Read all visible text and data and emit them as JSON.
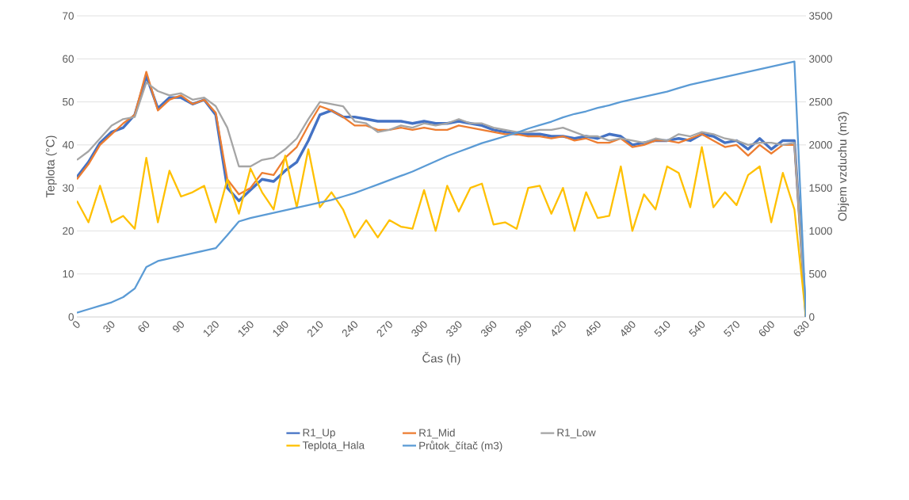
{
  "chart_data": {
    "type": "line",
    "xlabel": "Čas (h)",
    "ylabel": "Teplota (°C)",
    "y2label": "Objem vzduchu (m3)",
    "x": [
      0,
      10,
      20,
      30,
      40,
      50,
      60,
      70,
      80,
      90,
      100,
      110,
      120,
      130,
      140,
      150,
      160,
      170,
      180,
      190,
      200,
      210,
      220,
      230,
      240,
      250,
      260,
      270,
      280,
      290,
      300,
      310,
      320,
      330,
      340,
      350,
      360,
      370,
      380,
      390,
      400,
      410,
      420,
      430,
      440,
      450,
      460,
      470,
      480,
      490,
      500,
      510,
      520,
      530,
      540,
      550,
      560,
      570,
      580,
      590,
      600,
      610,
      620,
      630
    ],
    "xlim": [
      0,
      630
    ],
    "xticks": [
      0,
      30,
      60,
      90,
      120,
      150,
      180,
      210,
      240,
      270,
      300,
      330,
      360,
      390,
      420,
      450,
      480,
      510,
      540,
      570,
      600,
      630
    ],
    "ylim": [
      0,
      70
    ],
    "yticks": [
      0,
      10,
      20,
      30,
      40,
      50,
      60,
      70
    ],
    "y2lim": [
      0,
      3500
    ],
    "y2ticks": [
      0,
      500,
      1000,
      1500,
      2000,
      2500,
      3000,
      3500
    ],
    "grid": "y",
    "legend": "bottom",
    "marker": "none",
    "line_style": "solid",
    "series": [
      {
        "name": "R1_Up",
        "color": "#4472c4",
        "values": [
          32.5,
          36,
          40.5,
          43,
          44,
          47,
          56,
          48.5,
          51,
          51,
          49.5,
          50.5,
          47,
          30,
          27,
          29.5,
          32,
          31.5,
          34,
          36,
          41,
          47,
          48,
          46.5,
          46.5,
          46,
          45.5,
          45.5,
          45.5,
          45,
          45.5,
          45,
          45,
          45.5,
          45,
          44.5,
          43.5,
          43,
          42.5,
          42.5,
          42.5,
          42,
          42,
          41.5,
          42,
          41.5,
          42.5,
          42,
          40,
          40.5,
          41,
          41,
          41.5,
          41,
          42.5,
          42,
          40.5,
          41,
          39,
          41.5,
          39,
          41,
          41,
          0
        ]
      },
      {
        "name": "R1_Mid",
        "color": "#ed7d31",
        "values": [
          32,
          35.5,
          40,
          42.5,
          45,
          47,
          57,
          48,
          50.5,
          51.5,
          49.5,
          50.5,
          47.5,
          32,
          28.5,
          30,
          33.5,
          33,
          37,
          39.5,
          44.5,
          49,
          48,
          46.5,
          44.5,
          44.5,
          43.5,
          43.5,
          44,
          43.5,
          44,
          43.5,
          43.5,
          44.5,
          44,
          43.5,
          43,
          42.5,
          42.5,
          42,
          42,
          41.5,
          42,
          41,
          41.5,
          40.5,
          40.5,
          41.5,
          39.5,
          40,
          41,
          41,
          40.5,
          41.5,
          42.5,
          41,
          39.5,
          40,
          37.5,
          40,
          38,
          40,
          40,
          0
        ]
      },
      {
        "name": "R1_Low",
        "color": "#a5a5a5",
        "values": [
          36.5,
          38.5,
          41.5,
          44.5,
          46,
          46.5,
          54.5,
          52.5,
          51.5,
          52,
          50.5,
          51,
          49,
          44,
          35,
          35,
          36.5,
          37,
          39,
          41.5,
          46,
          50,
          49.5,
          49,
          45.5,
          45,
          43,
          43.5,
          44.5,
          44,
          45,
          44.5,
          45,
          46,
          45,
          45,
          44,
          43.5,
          43,
          43,
          43.5,
          43.5,
          44,
          43,
          42,
          42,
          41,
          41.5,
          41,
          40.5,
          41.5,
          41,
          42.5,
          42,
          43,
          42.5,
          41.5,
          41,
          40,
          40.5,
          40.5,
          40,
          40.5,
          0
        ]
      },
      {
        "name": "Teplota_Hala",
        "color": "#ffc000",
        "values": [
          27,
          22,
          30.5,
          22,
          23.5,
          20.5,
          37,
          22,
          34,
          28,
          29,
          30.5,
          22,
          32,
          24,
          34.5,
          29,
          25,
          37.5,
          25.5,
          39,
          25.5,
          29,
          25,
          18.5,
          22.5,
          18.5,
          22.5,
          21,
          20.5,
          29.5,
          20,
          30.5,
          24.5,
          30,
          31,
          21.5,
          22,
          20.5,
          30,
          30.5,
          24,
          30,
          20,
          29,
          23,
          23.5,
          35,
          20,
          28.5,
          25,
          35,
          33.5,
          25.5,
          39.5,
          25.5,
          29,
          26,
          33,
          35,
          22,
          33.5,
          25,
          0
        ]
      },
      {
        "name": "Průtok_čítač (m3)",
        "color": "#5b9bd5",
        "axis": "y2",
        "values": [
          50,
          90,
          130,
          170,
          230,
          330,
          580,
          650,
          680,
          710,
          740,
          770,
          800,
          950,
          1110,
          1150,
          1180,
          1210,
          1240,
          1270,
          1300,
          1330,
          1360,
          1400,
          1440,
          1490,
          1540,
          1590,
          1640,
          1690,
          1750,
          1810,
          1870,
          1920,
          1970,
          2020,
          2060,
          2100,
          2140,
          2190,
          2230,
          2270,
          2320,
          2360,
          2390,
          2430,
          2460,
          2500,
          2530,
          2560,
          2590,
          2620,
          2660,
          2700,
          2730,
          2760,
          2790,
          2820,
          2850,
          2880,
          2910,
          2940,
          2970,
          0
        ]
      }
    ]
  }
}
